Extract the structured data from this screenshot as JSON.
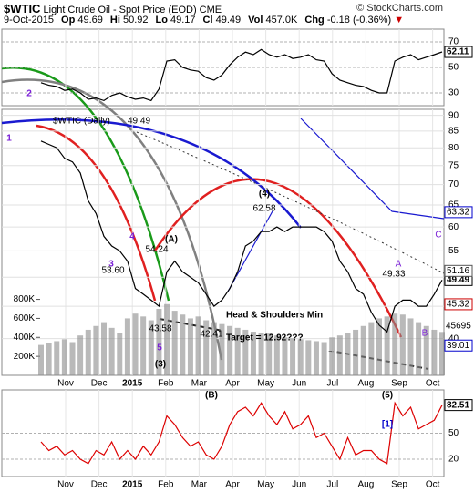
{
  "header": {
    "symbol": "$WTIC",
    "title": "Light Crude Oil - Spot Price (EOD) CME",
    "date": "9-Oct-2015",
    "watermark": "© StockCharts.com",
    "stats": [
      [
        "Op",
        "49.69"
      ],
      [
        "Hi",
        "50.92"
      ],
      [
        "Lo",
        "49.17"
      ],
      [
        "Cl",
        "49.49"
      ],
      [
        "Vol",
        "457.0K"
      ],
      [
        "Chg",
        "-0.18 (-0.36%)"
      ]
    ]
  },
  "x_labels": [
    "Nov",
    "Dec",
    "2015",
    "Feb",
    "Mar",
    "Apr",
    "May",
    "Jun",
    "Jul",
    "Aug",
    "Sep",
    "Oct"
  ],
  "chart_data": [
    {
      "type": "line",
      "ylim": [
        20,
        80
      ],
      "yticks": [
        30,
        50,
        70
      ],
      "series": [
        {
          "color": "#000000",
          "values": [
            38,
            36,
            35,
            32,
            33,
            30,
            25,
            26,
            24,
            28,
            30,
            27,
            25,
            26,
            24,
            33,
            55,
            56,
            50,
            48,
            47,
            42,
            40,
            44,
            52,
            58,
            62,
            60,
            64,
            60,
            58,
            60,
            57,
            58,
            60,
            56,
            55,
            45,
            40,
            38,
            36,
            35,
            32,
            30,
            30,
            55,
            58,
            60,
            56,
            58,
            60,
            62.11
          ]
        }
      ]
    },
    {
      "type": "line",
      "log": true,
      "ylim": [
        35,
        92
      ],
      "yticks": [
        40,
        45,
        50,
        55,
        60,
        65,
        70,
        75,
        80,
        85,
        90
      ],
      "grid": true,
      "y2lim": [
        0,
        2800000
      ],
      "y2ticks": [
        {
          "value": 200000,
          "label": "200K"
        },
        {
          "value": 400000,
          "label": "400K"
        },
        {
          "value": 600000,
          "label": "600K"
        },
        {
          "value": 800000,
          "label": "800K"
        }
      ],
      "series": [
        {
          "name": "$WTIC (Daily)",
          "color": "#000000",
          "values": [
            82,
            81,
            80,
            77,
            76,
            73,
            66,
            63,
            58,
            56,
            55,
            53,
            48,
            47,
            46,
            45,
            51,
            53,
            51,
            50,
            49,
            47,
            45,
            46,
            48,
            51,
            56,
            57,
            59,
            59,
            60,
            59,
            60,
            60,
            60,
            60,
            59,
            57,
            53,
            51,
            48,
            47,
            44,
            42,
            41,
            45,
            46,
            46,
            45,
            45,
            47,
            49.49
          ]
        },
        {
          "type": "bar",
          "axis": "y2",
          "color": "#8a8a8a",
          "values": [
            320000,
            340000,
            360000,
            380000,
            350000,
            420000,
            480000,
            520000,
            560000,
            500000,
            450000,
            600000,
            650000,
            620000,
            580000,
            700000,
            750000,
            680000,
            640000,
            600000,
            620000,
            580000,
            560000,
            540000,
            520000,
            500000,
            480000,
            460000,
            450000,
            440000,
            420000,
            400000,
            390000,
            380000,
            370000,
            360000,
            350000,
            400000,
            420000,
            450000,
            480000,
            520000,
            560000,
            600000,
            620000,
            650000,
            640000,
            600000,
            560000,
            520000,
            480000,
            457000
          ]
        }
      ],
      "price_tags": [
        {
          "value": 63.32,
          "color": "#0000cc"
        },
        {
          "value": 51.16,
          "color": "#555555"
        },
        {
          "value": 45.32,
          "color": "#cc0000"
        },
        {
          "value": 39.01,
          "color": "#0000cc"
        }
      ],
      "volume_tag": "45695",
      "annotations": [
        "(4)",
        "62.58",
        "(A)",
        "54.24",
        "53.60",
        "43.58",
        "42.41",
        "49.33",
        "A",
        "B",
        "C",
        "1",
        "2",
        "3",
        "4",
        "5",
        "(3)",
        "Head & Shoulders Min",
        "Target = 12.92???"
      ]
    },
    {
      "type": "line",
      "ylim": [
        0,
        100
      ],
      "yticks": [
        20,
        50
      ],
      "series": [
        {
          "color": "#dd0000",
          "values": [
            40,
            30,
            35,
            25,
            30,
            20,
            15,
            30,
            25,
            40,
            20,
            30,
            20,
            35,
            25,
            40,
            70,
            60,
            45,
            35,
            40,
            25,
            20,
            35,
            60,
            75,
            80,
            70,
            85,
            70,
            60,
            75,
            55,
            60,
            70,
            45,
            50,
            35,
            20,
            45,
            25,
            30,
            30,
            20,
            15,
            85,
            70,
            80,
            55,
            60,
            65,
            82.51
          ]
        }
      ],
      "annotations": [
        "(B)",
        "(5)",
        "[1]"
      ]
    }
  ]
}
